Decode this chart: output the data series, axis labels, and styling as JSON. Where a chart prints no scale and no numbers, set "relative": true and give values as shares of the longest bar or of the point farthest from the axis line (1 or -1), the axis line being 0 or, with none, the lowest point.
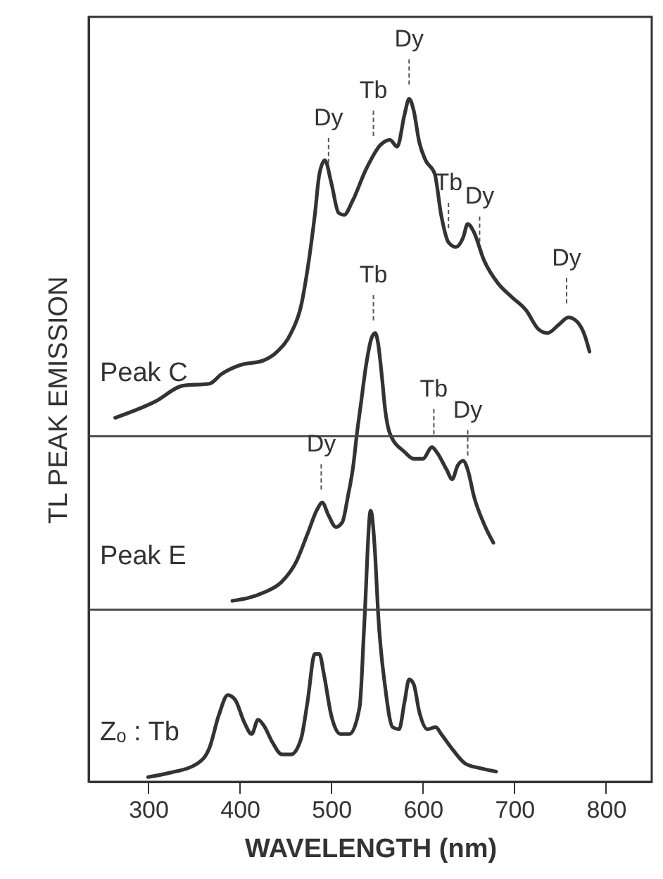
{
  "chart_data": {
    "type": "line",
    "relative": true,
    "xlabel": "WAVELENGTH (nm)",
    "ylabel": "TL PEAK EMISSION",
    "xlim": [
      235,
      850
    ],
    "xticks": [
      300,
      400,
      500,
      600,
      700,
      800
    ],
    "series": [
      {
        "name": "Peak C",
        "color": "#333333",
        "x": [
          264,
          308,
          338,
          367,
          380,
          400,
          426,
          441,
          456,
          467,
          474,
          482,
          487,
          493,
          500,
          508,
          514,
          523,
          538,
          554,
          564,
          572,
          580,
          585,
          590,
          596,
          603,
          613,
          620,
          628,
          636,
          644,
          649,
          655,
          667,
          682,
          697,
          713,
          726,
          736,
          749,
          759,
          769,
          777,
          782
        ],
        "values": [
          0.533,
          0.557,
          0.58,
          0.583,
          0.597,
          0.61,
          0.617,
          0.63,
          0.657,
          0.697,
          0.75,
          0.83,
          0.89,
          0.91,
          0.877,
          0.833,
          0.83,
          0.85,
          0.897,
          0.933,
          0.94,
          0.93,
          0.977,
          1,
          0.983,
          0.937,
          0.91,
          0.89,
          0.83,
          0.79,
          0.783,
          0.797,
          0.817,
          0.807,
          0.763,
          0.73,
          0.71,
          0.69,
          0.663,
          0.657,
          0.67,
          0.68,
          0.673,
          0.653,
          0.63
        ]
      },
      {
        "name": "Peak E",
        "color": "#333333",
        "x": [
          392,
          426,
          446,
          462,
          474,
          485,
          490,
          497,
          505,
          512,
          518,
          524,
          528,
          532,
          538,
          544,
          548,
          551,
          555,
          559,
          564,
          580,
          590,
          600,
          610,
          615,
          626,
          632,
          638,
          644,
          649,
          656,
          667,
          677
        ],
        "values": [
          0.265,
          0.277,
          0.293,
          0.323,
          0.363,
          0.4,
          0.409,
          0.39,
          0.373,
          0.38,
          0.417,
          0.463,
          0.51,
          0.55,
          0.61,
          0.65,
          0.657,
          0.643,
          0.597,
          0.543,
          0.51,
          0.483,
          0.473,
          0.473,
          0.49,
          0.483,
          0.457,
          0.443,
          0.463,
          0.47,
          0.457,
          0.417,
          0.377,
          0.35
        ]
      },
      {
        "name": "Zₒ : Tb",
        "color": "#333333",
        "x": [
          300,
          323,
          354,
          367,
          377,
          387,
          395,
          405,
          413,
          420,
          426,
          436,
          446,
          456,
          467,
          474,
          482,
          487,
          492,
          500,
          510,
          520,
          531,
          536,
          543,
          548,
          551,
          559,
          567,
          574,
          580,
          585,
          590,
          596,
          605,
          614,
          620,
          631,
          646,
          662,
          680
        ],
        "values": [
          0.007,
          0.013,
          0.027,
          0.05,
          0.097,
          0.127,
          0.12,
          0.087,
          0.07,
          0.091,
          0.083,
          0.057,
          0.04,
          0.04,
          0.063,
          0.117,
          0.187,
          0.187,
          0.157,
          0.097,
          0.07,
          0.07,
          0.11,
          0.23,
          0.397,
          0.33,
          0.25,
          0.137,
          0.08,
          0.077,
          0.117,
          0.15,
          0.143,
          0.103,
          0.077,
          0.08,
          0.07,
          0.05,
          0.027,
          0.02,
          0.015
        ]
      }
    ],
    "annotations": [
      {
        "text": "Dy",
        "x": 497,
        "y": 0.885
      },
      {
        "text": "Tb",
        "x": 546,
        "y": 0.925
      },
      {
        "text": "Dy",
        "x": 585,
        "y": 1
      },
      {
        "text": "Tb",
        "x": 628,
        "y": 0.79
      },
      {
        "text": "Dy",
        "x": 662,
        "y": 0.77
      },
      {
        "text": "Dy",
        "x": 757,
        "y": 0.68
      },
      {
        "text": "Tb",
        "x": 546,
        "y": 0.655
      },
      {
        "text": "Tb",
        "x": 612,
        "y": 0.488
      },
      {
        "text": "Dy",
        "x": 649,
        "y": 0.457
      },
      {
        "text": "Dy",
        "x": 489,
        "y": 0.407
      }
    ],
    "ref_lines": [
      {
        "axis": "y",
        "value": 0.506,
        "color": "#444444"
      },
      {
        "axis": "y",
        "value": 0.252,
        "color": "#444444"
      }
    ]
  }
}
